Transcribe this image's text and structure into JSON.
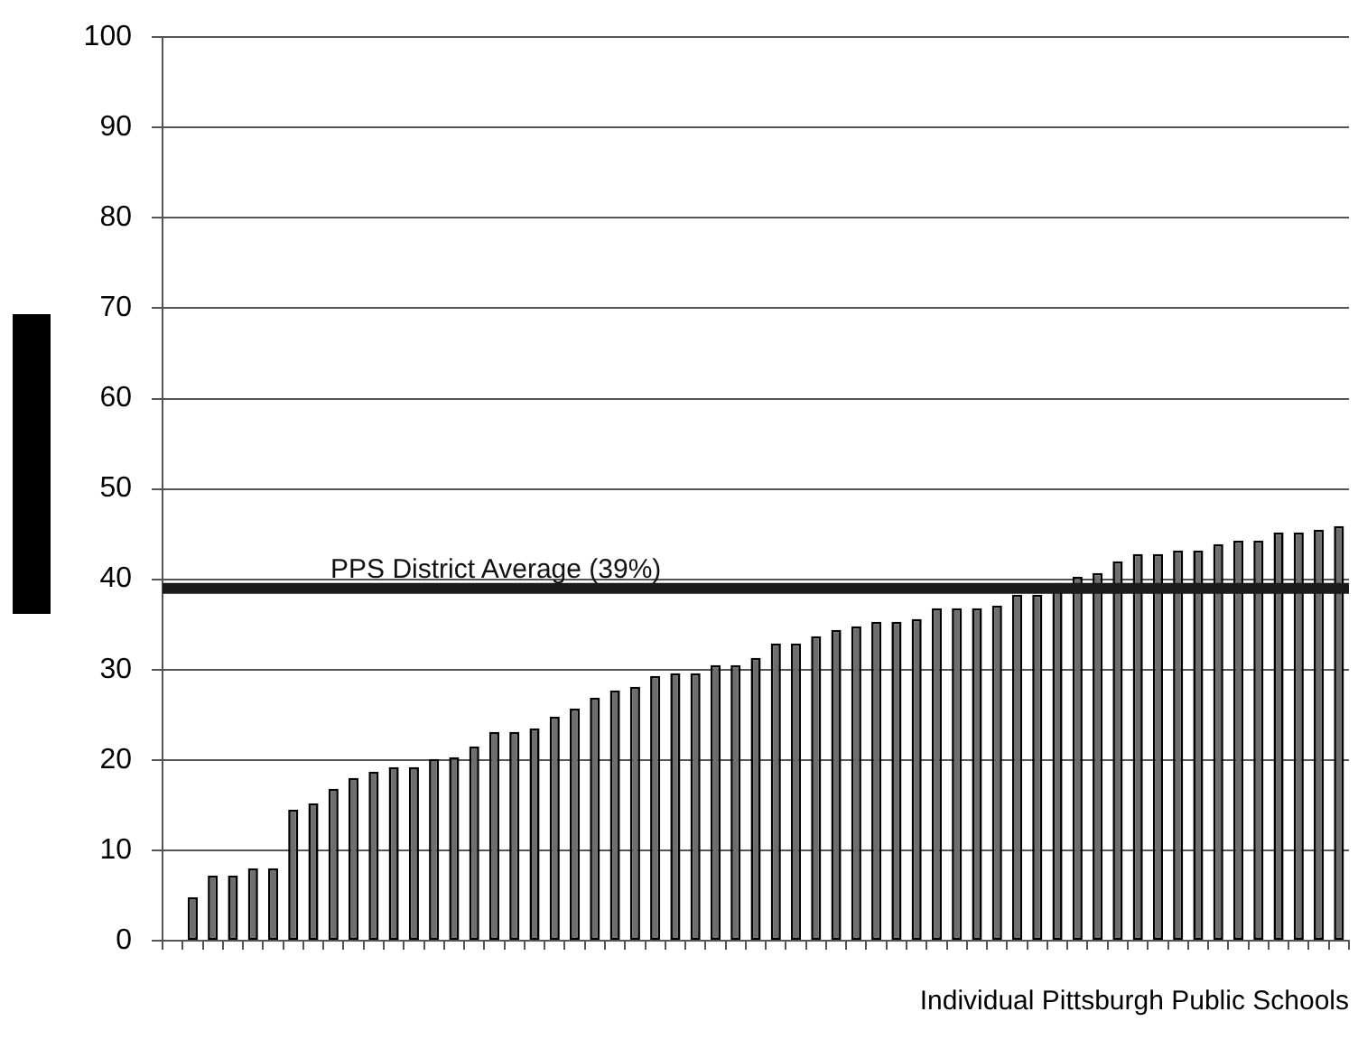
{
  "chart_data": {
    "type": "bar",
    "xlabel": "Individual Pittsburgh Public Schools",
    "categories": [
      null,
      null,
      null,
      null,
      null,
      null,
      null,
      null,
      null,
      null,
      null,
      null,
      null,
      null,
      null,
      null,
      null,
      null,
      null,
      null,
      null,
      null,
      null,
      null,
      null,
      null,
      null,
      null,
      null,
      null,
      null,
      null,
      null,
      null,
      null,
      null,
      null,
      null,
      null,
      null,
      null,
      null,
      null,
      null,
      null,
      null,
      null,
      null,
      null,
      null,
      null,
      null,
      null,
      null,
      null,
      null,
      null,
      null,
      null
    ],
    "values": [
      null,
      4.8,
      7.2,
      7.2,
      8.0,
      8.0,
      14.5,
      15.2,
      16.8,
      18.0,
      18.7,
      19.2,
      19.2,
      20.1,
      20.3,
      21.5,
      23.1,
      23.1,
      23.5,
      24.8,
      25.7,
      26.9,
      27.7,
      28.1,
      29.3,
      29.6,
      29.6,
      30.5,
      30.5,
      31.3,
      32.9,
      32.9,
      33.7,
      34.4,
      34.8,
      35.3,
      35.3,
      35.6,
      36.8,
      36.8,
      36.8,
      37.1,
      38.3,
      38.3,
      39.6,
      40.3,
      40.7,
      42.0,
      42.8,
      42.8,
      43.2,
      43.2,
      43.9,
      44.3,
      44.3,
      45.2,
      45.2,
      45.5,
      45.9
    ],
    "color": "#6e6e6e",
    "ylim": [
      0,
      100
    ],
    "yticks": [
      0,
      10,
      20,
      30,
      40,
      50,
      60,
      70,
      80,
      90,
      100
    ],
    "grid": "y",
    "tick_labels": "y",
    "ref_lines": [
      {
        "axis": "y",
        "value": 39,
        "label": "PPS District Average (39%)",
        "color": "#1a1a1a"
      }
    ]
  }
}
